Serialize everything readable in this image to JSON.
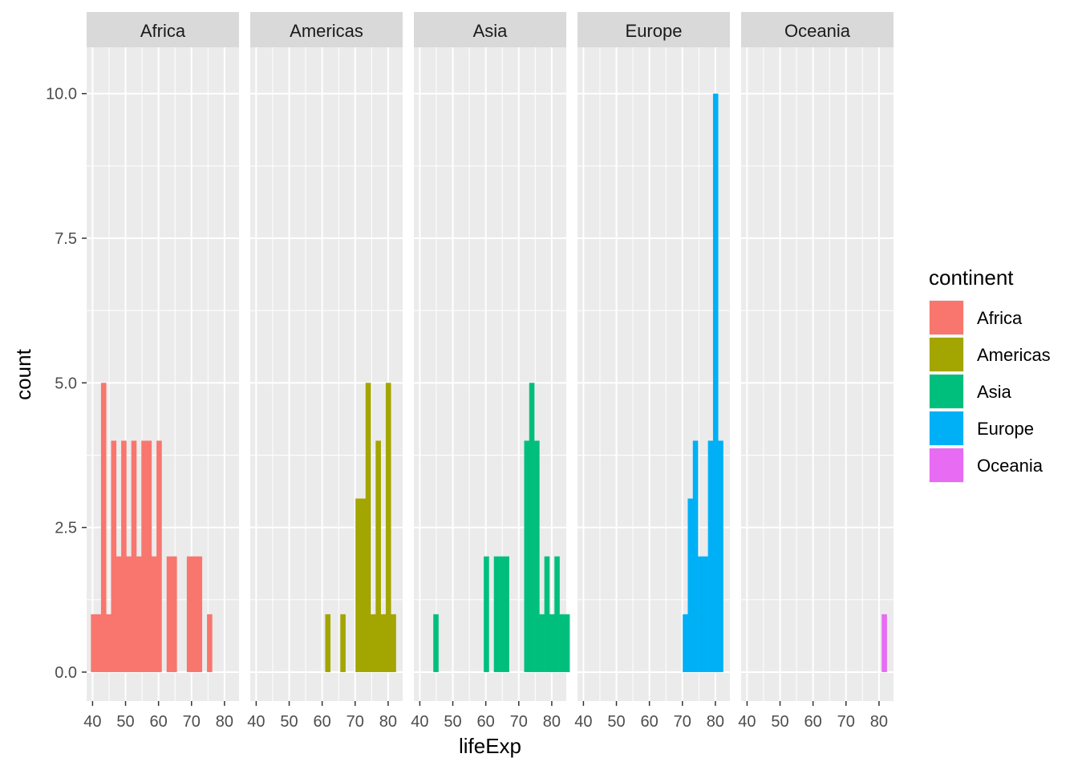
{
  "chart_data": {
    "type": "bar",
    "subtype": "faceted-histogram",
    "xlabel": "lifeExp",
    "ylabel": "count",
    "xlim": [
      38.2,
      84.4
    ],
    "ylim": [
      -0.5,
      10.8
    ],
    "x_ticks": [
      40,
      50,
      60,
      70,
      80
    ],
    "x_tick_labels": [
      "40",
      "50",
      "60",
      "70",
      "80"
    ],
    "y_ticks": [
      0,
      2.5,
      5,
      7.5,
      10
    ],
    "y_tick_labels": [
      "0.0",
      "2.5",
      "5.0",
      "7.5",
      "10.0"
    ],
    "bin_width": 1.53,
    "bin_start": 39.5,
    "grid": true,
    "legend": {
      "title": "continent",
      "position": "right",
      "entries": [
        {
          "label": "Africa",
          "color": "#F8766D"
        },
        {
          "label": "Americas",
          "color": "#A3A500"
        },
        {
          "label": "Asia",
          "color": "#00BF7D"
        },
        {
          "label": "Europe",
          "color": "#00B0F6"
        },
        {
          "label": "Oceania",
          "color": "#E76BF3"
        }
      ]
    },
    "panels": [
      {
        "name": "Africa",
        "color": "#F8766D",
        "bins": [
          {
            "bin": 0,
            "count": 1
          },
          {
            "bin": 1,
            "count": 1
          },
          {
            "bin": 2,
            "count": 5
          },
          {
            "bin": 3,
            "count": 1
          },
          {
            "bin": 4,
            "count": 4
          },
          {
            "bin": 5,
            "count": 2
          },
          {
            "bin": 6,
            "count": 4
          },
          {
            "bin": 7,
            "count": 2
          },
          {
            "bin": 8,
            "count": 4
          },
          {
            "bin": 9,
            "count": 2
          },
          {
            "bin": 10,
            "count": 4
          },
          {
            "bin": 11,
            "count": 4
          },
          {
            "bin": 12,
            "count": 2
          },
          {
            "bin": 13,
            "count": 4
          },
          {
            "bin": 15,
            "count": 2
          },
          {
            "bin": 16,
            "count": 2
          },
          {
            "bin": 19,
            "count": 2
          },
          {
            "bin": 20,
            "count": 2
          },
          {
            "bin": 21,
            "count": 2
          },
          {
            "bin": 23,
            "count": 1
          }
        ]
      },
      {
        "name": "Americas",
        "color": "#A3A500",
        "bins": [
          {
            "bin": 14,
            "count": 1
          },
          {
            "bin": 17,
            "count": 1
          },
          {
            "bin": 20,
            "count": 3
          },
          {
            "bin": 21,
            "count": 3
          },
          {
            "bin": 22,
            "count": 5
          },
          {
            "bin": 23,
            "count": 1
          },
          {
            "bin": 24,
            "count": 4
          },
          {
            "bin": 25,
            "count": 1
          },
          {
            "bin": 26,
            "count": 5
          },
          {
            "bin": 27,
            "count": 1
          }
        ]
      },
      {
        "name": "Asia",
        "color": "#00BF7D",
        "bins": [
          {
            "bin": 3,
            "count": 1
          },
          {
            "bin": 13,
            "count": 2
          },
          {
            "bin": 15,
            "count": 2
          },
          {
            "bin": 16,
            "count": 2
          },
          {
            "bin": 17,
            "count": 2
          },
          {
            "bin": 21,
            "count": 4
          },
          {
            "bin": 22,
            "count": 5
          },
          {
            "bin": 23,
            "count": 4
          },
          {
            "bin": 24,
            "count": 1
          },
          {
            "bin": 25,
            "count": 2
          },
          {
            "bin": 26,
            "count": 1
          },
          {
            "bin": 27,
            "count": 2
          },
          {
            "bin": 28,
            "count": 1
          },
          {
            "bin": 29,
            "count": 1
          }
        ]
      },
      {
        "name": "Europe",
        "color": "#00B0F6",
        "bins": [
          {
            "bin": 20,
            "count": 1
          },
          {
            "bin": 21,
            "count": 3
          },
          {
            "bin": 22,
            "count": 4
          },
          {
            "bin": 23,
            "count": 2
          },
          {
            "bin": 24,
            "count": 2
          },
          {
            "bin": 25,
            "count": 4
          },
          {
            "bin": 26,
            "count": 10
          },
          {
            "bin": 27,
            "count": 4
          }
        ]
      },
      {
        "name": "Oceania",
        "color": "#E76BF3",
        "bins": [
          {
            "bin": 27,
            "count": 1
          }
        ]
      }
    ]
  }
}
